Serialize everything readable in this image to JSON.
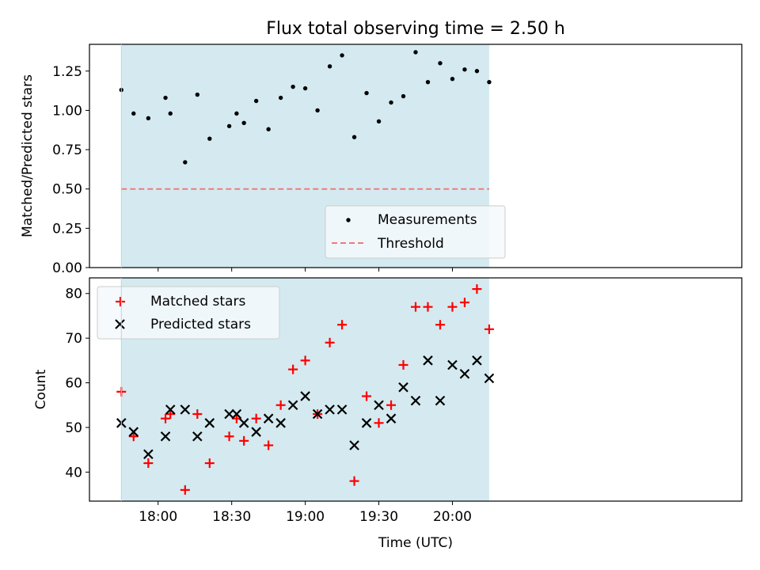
{
  "title": "Flux total observing time = 2.50 h",
  "xlabel": "Time (UTC)",
  "colors": {
    "shade": "#d4eaf0",
    "shade_edge": "#b3d8e0",
    "measurement": "#000000",
    "threshold": "#f07a7a",
    "matched": "#ff0000",
    "predicted": "#000000"
  },
  "chart_data": [
    {
      "type": "scatter",
      "ylabel": "Matched/Predicted stars",
      "ylim": [
        0,
        1.42
      ],
      "yticks": [
        0.0,
        0.25,
        0.5,
        0.75,
        1.0,
        1.25
      ],
      "ytick_labels": [
        "0.00",
        "0.25",
        "0.50",
        "0.75",
        "1.00",
        "1.25"
      ],
      "xlim_minutes_utc": [
        1052,
        1318
      ],
      "observing_window_utc": [
        "17:45",
        "20:15"
      ],
      "grid": false,
      "legend_position": "bottom-center",
      "threshold": {
        "name": "Threshold",
        "value": 0.5,
        "style": "dashed"
      },
      "series": [
        {
          "name": "Measurements",
          "marker": "dot",
          "points": [
            [
              "17:45",
              1.13
            ],
            [
              "17:50",
              0.98
            ],
            [
              "17:56",
              0.95
            ],
            [
              "18:03",
              1.08
            ],
            [
              "18:05",
              0.98
            ],
            [
              "18:11",
              0.67
            ],
            [
              "18:16",
              1.1
            ],
            [
              "18:21",
              0.82
            ],
            [
              "18:29",
              0.9
            ],
            [
              "18:32",
              0.98
            ],
            [
              "18:35",
              0.92
            ],
            [
              "18:40",
              1.06
            ],
            [
              "18:45",
              0.88
            ],
            [
              "18:50",
              1.08
            ],
            [
              "18:55",
              1.15
            ],
            [
              "19:00",
              1.14
            ],
            [
              "19:05",
              1.0
            ],
            [
              "19:10",
              1.28
            ],
            [
              "19:15",
              1.35
            ],
            [
              "19:20",
              0.83
            ],
            [
              "19:25",
              1.11
            ],
            [
              "19:30",
              0.93
            ],
            [
              "19:35",
              1.05
            ],
            [
              "19:40",
              1.09
            ],
            [
              "19:45",
              1.37
            ],
            [
              "19:50",
              1.18
            ],
            [
              "19:55",
              1.3
            ],
            [
              "20:00",
              1.2
            ],
            [
              "20:05",
              1.26
            ],
            [
              "20:10",
              1.25
            ],
            [
              "20:15",
              1.18
            ]
          ]
        }
      ]
    },
    {
      "type": "scatter",
      "ylabel": "Count",
      "ylim": [
        33.5,
        83.5
      ],
      "yticks": [
        40,
        50,
        60,
        70,
        80
      ],
      "ytick_labels": [
        "40",
        "50",
        "60",
        "70",
        "80"
      ],
      "xlim_minutes_utc": [
        1052,
        1318
      ],
      "xticks_utc": [
        "18:00",
        "18:30",
        "19:00",
        "19:30",
        "20:00"
      ],
      "observing_window_utc": [
        "17:45",
        "20:15"
      ],
      "grid": false,
      "legend_position": "top-left",
      "series": [
        {
          "name": "Matched stars",
          "marker": "plus",
          "points": [
            [
              "17:45",
              58
            ],
            [
              "17:50",
              48
            ],
            [
              "17:56",
              42
            ],
            [
              "18:03",
              52
            ],
            [
              "18:05",
              53
            ],
            [
              "18:11",
              36
            ],
            [
              "18:16",
              53
            ],
            [
              "18:21",
              42
            ],
            [
              "18:29",
              48
            ],
            [
              "18:32",
              52
            ],
            [
              "18:35",
              47
            ],
            [
              "18:40",
              52
            ],
            [
              "18:45",
              46
            ],
            [
              "18:50",
              55
            ],
            [
              "18:55",
              63
            ],
            [
              "19:00",
              65
            ],
            [
              "19:05",
              53
            ],
            [
              "19:10",
              69
            ],
            [
              "19:15",
              73
            ],
            [
              "19:20",
              38
            ],
            [
              "19:25",
              57
            ],
            [
              "19:30",
              51
            ],
            [
              "19:35",
              55
            ],
            [
              "19:40",
              64
            ],
            [
              "19:45",
              77
            ],
            [
              "19:50",
              77
            ],
            [
              "19:55",
              73
            ],
            [
              "20:00",
              77
            ],
            [
              "20:05",
              78
            ],
            [
              "20:10",
              81
            ],
            [
              "20:15",
              72
            ]
          ]
        },
        {
          "name": "Predicted stars",
          "marker": "x",
          "points": [
            [
              "17:45",
              51
            ],
            [
              "17:50",
              49
            ],
            [
              "17:56",
              44
            ],
            [
              "18:03",
              48
            ],
            [
              "18:05",
              54
            ],
            [
              "18:11",
              54
            ],
            [
              "18:16",
              48
            ],
            [
              "18:21",
              51
            ],
            [
              "18:29",
              53
            ],
            [
              "18:32",
              53
            ],
            [
              "18:35",
              51
            ],
            [
              "18:40",
              49
            ],
            [
              "18:45",
              52
            ],
            [
              "18:50",
              51
            ],
            [
              "18:55",
              55
            ],
            [
              "19:00",
              57
            ],
            [
              "19:05",
              53
            ],
            [
              "19:10",
              54
            ],
            [
              "19:15",
              54
            ],
            [
              "19:20",
              46
            ],
            [
              "19:25",
              51
            ],
            [
              "19:30",
              55
            ],
            [
              "19:35",
              52
            ],
            [
              "19:40",
              59
            ],
            [
              "19:45",
              56
            ],
            [
              "19:50",
              65
            ],
            [
              "19:55",
              56
            ],
            [
              "20:00",
              64
            ],
            [
              "20:05",
              62
            ],
            [
              "20:10",
              65
            ],
            [
              "20:15",
              61
            ]
          ]
        }
      ]
    }
  ]
}
